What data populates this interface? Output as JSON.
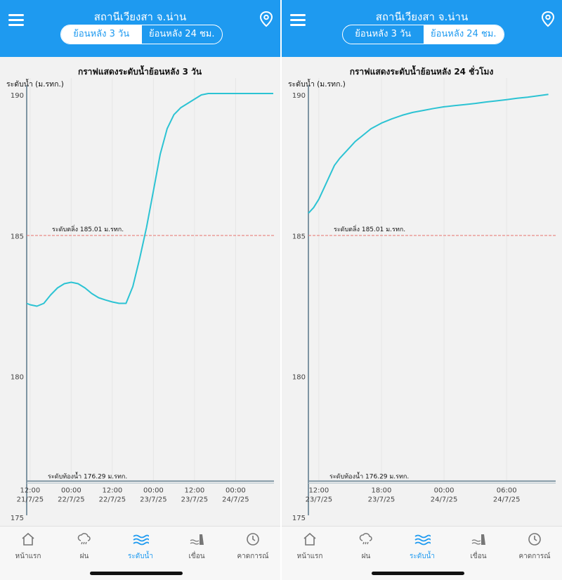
{
  "panels": [
    {
      "header": {
        "title": "สถานีเวียงสา จ.น่าน",
        "seg_3day": "ย้อนหลัง 3 วัน",
        "seg_24h": "ย้อนหลัง 24 ชม.",
        "active": "3day"
      },
      "chart": {
        "title": "กราฟแสดงระดับน้ำย้อนหลัง 3 วัน",
        "ylabel": "ระดับน้ำ (ม.รทก.)"
      },
      "chart_data": {
        "type": "line",
        "title": "กราฟแสดงระดับน้ำย้อนหลัง 3 วัน",
        "ylabel": "ระดับน้ำ (ม.รทก.)",
        "ylim": [
          175,
          190.6
        ],
        "yticks": [
          175,
          180,
          185,
          190
        ],
        "xticks": [
          {
            "t": 0,
            "line1": "12:00",
            "line2": "21/7/25"
          },
          {
            "t": 12,
            "line1": "00:00",
            "line2": "22/7/25"
          },
          {
            "t": 24,
            "line1": "12:00",
            "line2": "22/7/25"
          },
          {
            "t": 36,
            "line1": "00:00",
            "line2": "23/7/25"
          },
          {
            "t": 48,
            "line1": "12:00",
            "line2": "23/7/25"
          },
          {
            "t": 60,
            "line1": "00:00",
            "line2": "24/7/25"
          }
        ],
        "xlim": [
          -1,
          71.2
        ],
        "series": [
          {
            "values_t": [
              -1,
              0,
              2,
              4,
              6,
              8,
              10,
              12,
              14,
              16,
              18,
              20,
              22,
              24,
              26,
              28,
              30,
              32,
              34,
              36,
              38,
              40,
              42,
              44,
              46,
              48,
              50,
              52,
              54,
              56,
              58,
              60,
              62,
              64,
              66,
              68,
              70,
              71
            ],
            "values_y": [
              182.6,
              182.55,
              182.5,
              182.6,
              182.9,
              183.15,
              183.3,
              183.35,
              183.3,
              183.15,
              182.95,
              182.8,
              182.72,
              182.65,
              182.6,
              182.6,
              183.2,
              184.2,
              185.3,
              186.6,
              187.9,
              188.8,
              189.3,
              189.55,
              189.7,
              189.85,
              190.0,
              190.05,
              190.05,
              190.05,
              190.05,
              190.05,
              190.05,
              190.05,
              190.05,
              190.05,
              190.05,
              190.05
            ],
            "color": "#2cc3d3"
          }
        ],
        "reference_lines": [
          {
            "label": "ระดับตลิ่ง 185.01  ม.รทก.",
            "value": 185.01,
            "color": "#e8817c"
          },
          {
            "label": "ระดับท้องน้ำ 176.29  ม.รทก.",
            "value": 176.29,
            "color": "#7f95a3"
          }
        ]
      },
      "nav": [
        "หน้าแรก",
        "ฝน",
        "ระดับน้ำ",
        "เขื่อน",
        "คาดการณ์"
      ]
    },
    {
      "header": {
        "title": "สถานีเวียงสา จ.น่าน",
        "seg_3day": "ย้อนหลัง 3 วัน",
        "seg_24h": "ย้อนหลัง 24 ชม.",
        "active": "24h"
      },
      "chart": {
        "title": "กราฟแสดงระดับน้ำย้อนหลัง 24 ชั่วโมง",
        "ylabel": "ระดับน้ำ (ม.รทก.)"
      },
      "chart_data": {
        "type": "line",
        "title": "กราฟแสดงระดับน้ำย้อนหลัง 24 ชั่วโมง",
        "ylabel": "ระดับน้ำ (ม.รทก.)",
        "ylim": [
          175,
          190.6
        ],
        "yticks": [
          175,
          180,
          185,
          190
        ],
        "xticks": [
          {
            "t": 0,
            "line1": "12:00",
            "line2": "23/7/25"
          },
          {
            "t": 6,
            "line1": "18:00",
            "line2": "23/7/25"
          },
          {
            "t": 12,
            "line1": "00:00",
            "line2": "24/7/25"
          },
          {
            "t": 18,
            "line1": "06:00",
            "line2": "24/7/25"
          }
        ],
        "xlim": [
          -1,
          22.7
        ],
        "series": [
          {
            "values_t": [
              -1,
              -0.5,
              0,
              0.5,
              1,
              1.5,
              2,
              2.5,
              3,
              3.5,
              4,
              5,
              6,
              7,
              8,
              9,
              10,
              11,
              12,
              13,
              14,
              15,
              16,
              17,
              18,
              19,
              20,
              21,
              22
            ],
            "values_y": [
              185.8,
              186.0,
              186.3,
              186.7,
              187.1,
              187.5,
              187.75,
              187.95,
              188.15,
              188.35,
              188.5,
              188.8,
              189.0,
              189.15,
              189.28,
              189.38,
              189.45,
              189.52,
              189.58,
              189.62,
              189.66,
              189.7,
              189.75,
              189.79,
              189.83,
              189.88,
              189.92,
              189.97,
              190.02
            ],
            "color": "#2cc3d3"
          }
        ],
        "reference_lines": [
          {
            "label": "ระดับตลิ่ง 185.01  ม.รทก.",
            "value": 185.01,
            "color": "#e8817c"
          },
          {
            "label": "ระดับท้องน้ำ 176.29  ม.รทก.",
            "value": 176.29,
            "color": "#7f95a3"
          }
        ]
      },
      "nav": [
        "หน้าแรก",
        "ฝน",
        "ระดับน้ำ",
        "เขื่อน",
        "คาดการณ์"
      ]
    }
  ],
  "nav_active_index": 2,
  "colors": {
    "header": "#1e9af0",
    "line": "#2cc3d3",
    "bank": "#e8817c",
    "bed": "#7f95a3",
    "axis": "#7f95a3"
  }
}
